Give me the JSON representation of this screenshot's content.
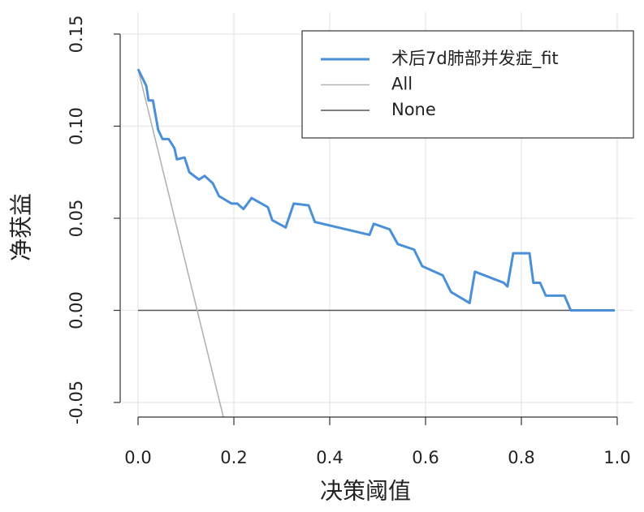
{
  "chart_data": {
    "type": "line",
    "x_label": "决策阈值",
    "y_label": "净获益",
    "xlim": [
      0,
      1
    ],
    "ylim": [
      -0.05,
      0.15
    ],
    "xticks": [
      {
        "value": 0,
        "label": "0.0"
      },
      0.2,
      0.4,
      0.6,
      0.8,
      {
        "value": 1,
        "label": "1.0"
      }
    ],
    "yticks": [
      -0.05,
      {
        "value": 0,
        "label": "0.00"
      },
      0.05,
      {
        "value": 0.1,
        "label": "0.10"
      },
      0.15
    ],
    "grid": true,
    "legend": "upper right",
    "series": [
      {
        "name": "术后7d肺部并发症_fit",
        "color": "#4a90d9",
        "x": [
          0,
          0.017,
          0.022,
          0.031,
          0.042,
          0.051,
          0.064,
          0.076,
          0.081,
          0.097,
          0.107,
          0.127,
          0.139,
          0.156,
          0.169,
          0.195,
          0.207,
          0.22,
          0.237,
          0.271,
          0.28,
          0.308,
          0.325,
          0.356,
          0.369,
          0.483,
          0.492,
          0.525,
          0.542,
          0.576,
          0.593,
          0.636,
          0.653,
          0.692,
          0.703,
          0.763,
          0.771,
          0.783,
          0.817,
          0.825,
          0.839,
          0.851,
          0.89,
          0.903,
          0.995
        ],
        "values": [
          0.131,
          0.122,
          0.114,
          0.114,
          0.098,
          0.093,
          0.093,
          0.088,
          0.082,
          0.083,
          0.075,
          0.071,
          0.073,
          0.069,
          0.062,
          0.058,
          0.058,
          0.055,
          0.061,
          0.056,
          0.049,
          0.045,
          0.058,
          0.057,
          0.048,
          0.041,
          0.047,
          0.044,
          0.036,
          0.033,
          0.024,
          0.019,
          0.01,
          0.004,
          0.021,
          0.015,
          0.013,
          0.031,
          0.031,
          0.015,
          0.015,
          0.008,
          0.008,
          0,
          0
        ]
      },
      {
        "name": "All",
        "color": "#b3b3b3",
        "x": [
          0,
          0.18
        ],
        "values": [
          0.131,
          -0.06
        ]
      },
      {
        "name": "None",
        "color": "#555555",
        "x": [
          0,
          0.995
        ],
        "values": [
          0,
          0
        ]
      }
    ]
  }
}
